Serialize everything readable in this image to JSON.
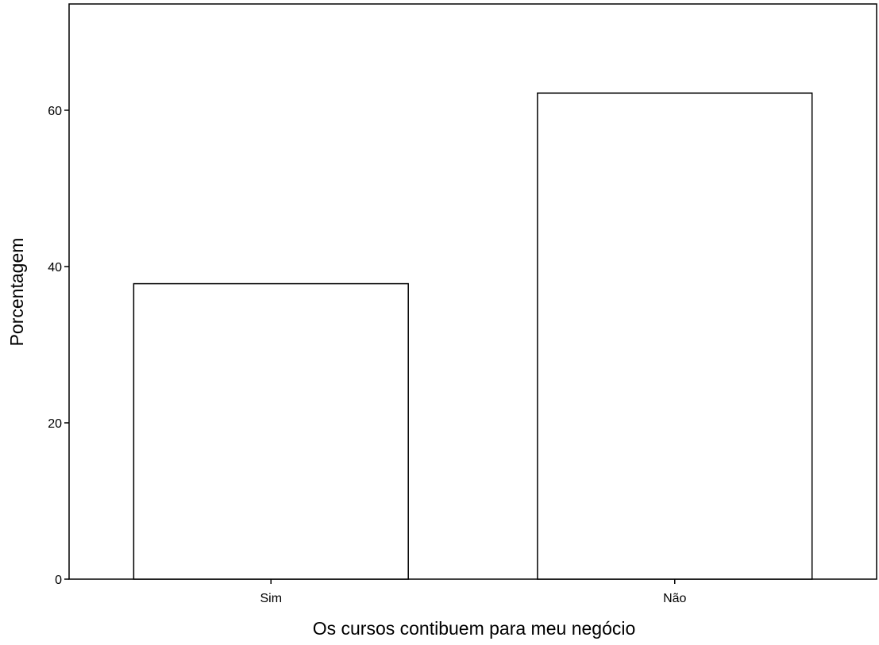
{
  "chart_data": {
    "type": "bar",
    "title": "",
    "xlabel": "Os cursos contibuem para meu negócio",
    "ylabel": "Porcentagem",
    "categories": [
      "Sim",
      "Não"
    ],
    "values": [
      37.8,
      62.2
    ],
    "ylim": [
      0,
      73.6
    ],
    "yticks": [
      0,
      20,
      40,
      60
    ],
    "ytick_labels": [
      "0",
      "20",
      "40",
      "60"
    ],
    "grid": false,
    "legend": "none",
    "colors": {
      "bar_fill": "#ffffff",
      "bar_stroke": "#000000",
      "frame": "#000000",
      "background": "#ffffff"
    }
  }
}
